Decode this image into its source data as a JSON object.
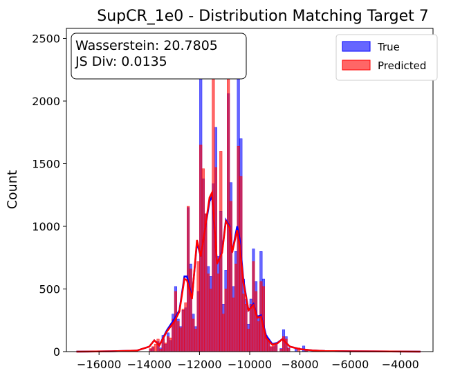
{
  "chart_data": {
    "type": "histogram",
    "title": "SupCR_1e0 - Distribution Matching Target 7",
    "xlabel": "",
    "ylabel": "Count",
    "xlim": [
      -17300,
      -2700
    ],
    "ylim": [
      0,
      2580
    ],
    "x_ticks": [
      -16000,
      -14000,
      -12000,
      -10000,
      -8000,
      -6000,
      -4000
    ],
    "x_tick_labels": [
      "−16000",
      "−14000",
      "−12000",
      "−10000",
      "−8000",
      "−6000",
      "−4000"
    ],
    "y_ticks": [
      0,
      500,
      1000,
      1500,
      2000,
      2500
    ],
    "y_tick_labels": [
      "0",
      "500",
      "1000",
      "1500",
      "2000",
      "2500"
    ],
    "bin_width": 100,
    "annotation": [
      "Wasserstein: 20.7805",
      "JS Div: 0.0135"
    ],
    "legend": {
      "position": "top-right",
      "entries": [
        "True",
        "Predicted"
      ]
    },
    "colors": {
      "True": "#0000ff",
      "Predicted": "#ff0000"
    },
    "series": [
      {
        "name": "True",
        "bins": [
          [
            -16900,
            5
          ],
          [
            -15200,
            3
          ],
          [
            -14600,
            4
          ],
          [
            -14000,
            20
          ],
          [
            -13900,
            35
          ],
          [
            -13700,
            80
          ],
          [
            -13600,
            30
          ],
          [
            -13500,
            130
          ],
          [
            -13400,
            60
          ],
          [
            -13300,
            150
          ],
          [
            -13200,
            90
          ],
          [
            -13100,
            300
          ],
          [
            -13000,
            520
          ],
          [
            -12900,
            260
          ],
          [
            -12800,
            200
          ],
          [
            -12700,
            330
          ],
          [
            -12600,
            350
          ],
          [
            -12500,
            1150
          ],
          [
            -12400,
            700
          ],
          [
            -12300,
            300
          ],
          [
            -12200,
            200
          ],
          [
            -12100,
            480
          ],
          [
            -12000,
            2220
          ],
          [
            -11900,
            1380
          ],
          [
            -11800,
            1100
          ],
          [
            -11700,
            680
          ],
          [
            -11600,
            600
          ],
          [
            -11500,
            1340
          ],
          [
            -11400,
            1790
          ],
          [
            -11300,
            760
          ],
          [
            -11200,
            1120
          ],
          [
            -11100,
            380
          ],
          [
            -11000,
            650
          ],
          [
            -10900,
            2060
          ],
          [
            -10800,
            1350
          ],
          [
            -10700,
            520
          ],
          [
            -10600,
            800
          ],
          [
            -10500,
            2350
          ],
          [
            -10400,
            1700
          ],
          [
            -10300,
            580
          ],
          [
            -10200,
            420
          ],
          [
            -10100,
            220
          ],
          [
            -10000,
            420
          ],
          [
            -9900,
            820
          ],
          [
            -9800,
            560
          ],
          [
            -9700,
            270
          ],
          [
            -9600,
            800
          ],
          [
            -9500,
            580
          ],
          [
            -9400,
            130
          ],
          [
            -9300,
            90
          ],
          [
            -9200,
            40
          ],
          [
            -9100,
            40
          ],
          [
            -9000,
            60
          ],
          [
            -8800,
            25
          ],
          [
            -8700,
            175
          ],
          [
            -8600,
            120
          ],
          [
            -8500,
            30
          ],
          [
            -8200,
            25
          ],
          [
            -7900,
            45
          ],
          [
            -7800,
            15
          ],
          [
            -7400,
            12
          ],
          [
            -6800,
            8
          ],
          [
            -6200,
            6
          ],
          [
            -3300,
            4
          ]
        ]
      },
      {
        "name": "Predicted",
        "bins": [
          [
            -16500,
            3
          ],
          [
            -15800,
            4
          ],
          [
            -15300,
            3
          ],
          [
            -14700,
            5
          ],
          [
            -14000,
            25
          ],
          [
            -13900,
            40
          ],
          [
            -13800,
            60
          ],
          [
            -13700,
            100
          ],
          [
            -13600,
            20
          ],
          [
            -13500,
            100
          ],
          [
            -13400,
            70
          ],
          [
            -13300,
            120
          ],
          [
            -13200,
            110
          ],
          [
            -13100,
            260
          ],
          [
            -13000,
            480
          ],
          [
            -12900,
            240
          ],
          [
            -12800,
            190
          ],
          [
            -12700,
            340
          ],
          [
            -12600,
            390
          ],
          [
            -12500,
            1160
          ],
          [
            -12400,
            660
          ],
          [
            -12300,
            260
          ],
          [
            -12200,
            180
          ],
          [
            -12100,
            720
          ],
          [
            -12000,
            1650
          ],
          [
            -11900,
            1460
          ],
          [
            -11800,
            1100
          ],
          [
            -11700,
            620
          ],
          [
            -11600,
            500
          ],
          [
            -11500,
            2420
          ],
          [
            -11400,
            1470
          ],
          [
            -11300,
            620
          ],
          [
            -11200,
            1600
          ],
          [
            -11100,
            300
          ],
          [
            -11000,
            500
          ],
          [
            -10900,
            2400
          ],
          [
            -10800,
            1200
          ],
          [
            -10700,
            430
          ],
          [
            -10600,
            700
          ],
          [
            -10500,
            1640
          ],
          [
            -10400,
            1400
          ],
          [
            -10300,
            460
          ],
          [
            -10200,
            380
          ],
          [
            -10100,
            180
          ],
          [
            -10000,
            380
          ],
          [
            -9900,
            720
          ],
          [
            -9800,
            480
          ],
          [
            -9700,
            240
          ],
          [
            -9600,
            560
          ],
          [
            -9500,
            520
          ],
          [
            -9400,
            110
          ],
          [
            -9300,
            80
          ],
          [
            -9200,
            40
          ],
          [
            -9100,
            55
          ],
          [
            -9000,
            50
          ],
          [
            -8800,
            20
          ],
          [
            -8700,
            120
          ],
          [
            -8600,
            100
          ],
          [
            -8500,
            25
          ],
          [
            -8100,
            30
          ],
          [
            -7800,
            10
          ],
          [
            -6500,
            5
          ],
          [
            -5000,
            3
          ],
          [
            -3500,
            3
          ]
        ]
      }
    ],
    "kde": [
      {
        "name": "True",
        "points": [
          [
            -16900,
            0
          ],
          [
            -15500,
            3
          ],
          [
            -14500,
            8
          ],
          [
            -14000,
            40
          ],
          [
            -13800,
            90
          ],
          [
            -13600,
            50
          ],
          [
            -13300,
            170
          ],
          [
            -13000,
            260
          ],
          [
            -12800,
            330
          ],
          [
            -12600,
            600
          ],
          [
            -12500,
            600
          ],
          [
            -12300,
            430
          ],
          [
            -12100,
            870
          ],
          [
            -11950,
            760
          ],
          [
            -11800,
            950
          ],
          [
            -11600,
            1200
          ],
          [
            -11500,
            1240
          ],
          [
            -11300,
            700
          ],
          [
            -11100,
            800
          ],
          [
            -10950,
            1050
          ],
          [
            -10800,
            1000
          ],
          [
            -10700,
            790
          ],
          [
            -10500,
            1000
          ],
          [
            -10400,
            900
          ],
          [
            -10250,
            570
          ],
          [
            -10050,
            330
          ],
          [
            -9850,
            380
          ],
          [
            -9700,
            280
          ],
          [
            -9550,
            290
          ],
          [
            -9350,
            130
          ],
          [
            -9100,
            60
          ],
          [
            -8900,
            70
          ],
          [
            -8700,
            100
          ],
          [
            -8400,
            40
          ],
          [
            -8000,
            20
          ],
          [
            -7500,
            10
          ],
          [
            -7000,
            5
          ],
          [
            -6000,
            3
          ],
          [
            -5000,
            2
          ],
          [
            -3200,
            0
          ]
        ]
      },
      {
        "name": "Predicted",
        "points": [
          [
            -16900,
            0
          ],
          [
            -15500,
            3
          ],
          [
            -14500,
            8
          ],
          [
            -14000,
            40
          ],
          [
            -13800,
            90
          ],
          [
            -13600,
            50
          ],
          [
            -13300,
            160
          ],
          [
            -13000,
            240
          ],
          [
            -12800,
            320
          ],
          [
            -12600,
            580
          ],
          [
            -12500,
            570
          ],
          [
            -12300,
            420
          ],
          [
            -12100,
            890
          ],
          [
            -11950,
            760
          ],
          [
            -11800,
            950
          ],
          [
            -11600,
            1230
          ],
          [
            -11500,
            1270
          ],
          [
            -11300,
            700
          ],
          [
            -11100,
            790
          ],
          [
            -10950,
            1040
          ],
          [
            -10800,
            990
          ],
          [
            -10700,
            790
          ],
          [
            -10500,
            970
          ],
          [
            -10400,
            850
          ],
          [
            -10250,
            550
          ],
          [
            -10050,
            330
          ],
          [
            -9850,
            370
          ],
          [
            -9700,
            270
          ],
          [
            -9550,
            280
          ],
          [
            -9350,
            110
          ],
          [
            -9100,
            55
          ],
          [
            -8900,
            65
          ],
          [
            -8700,
            100
          ],
          [
            -8400,
            40
          ],
          [
            -8000,
            20
          ],
          [
            -7500,
            10
          ],
          [
            -7000,
            5
          ],
          [
            -6000,
            3
          ],
          [
            -5000,
            2
          ],
          [
            -3200,
            0
          ]
        ]
      }
    ]
  }
}
